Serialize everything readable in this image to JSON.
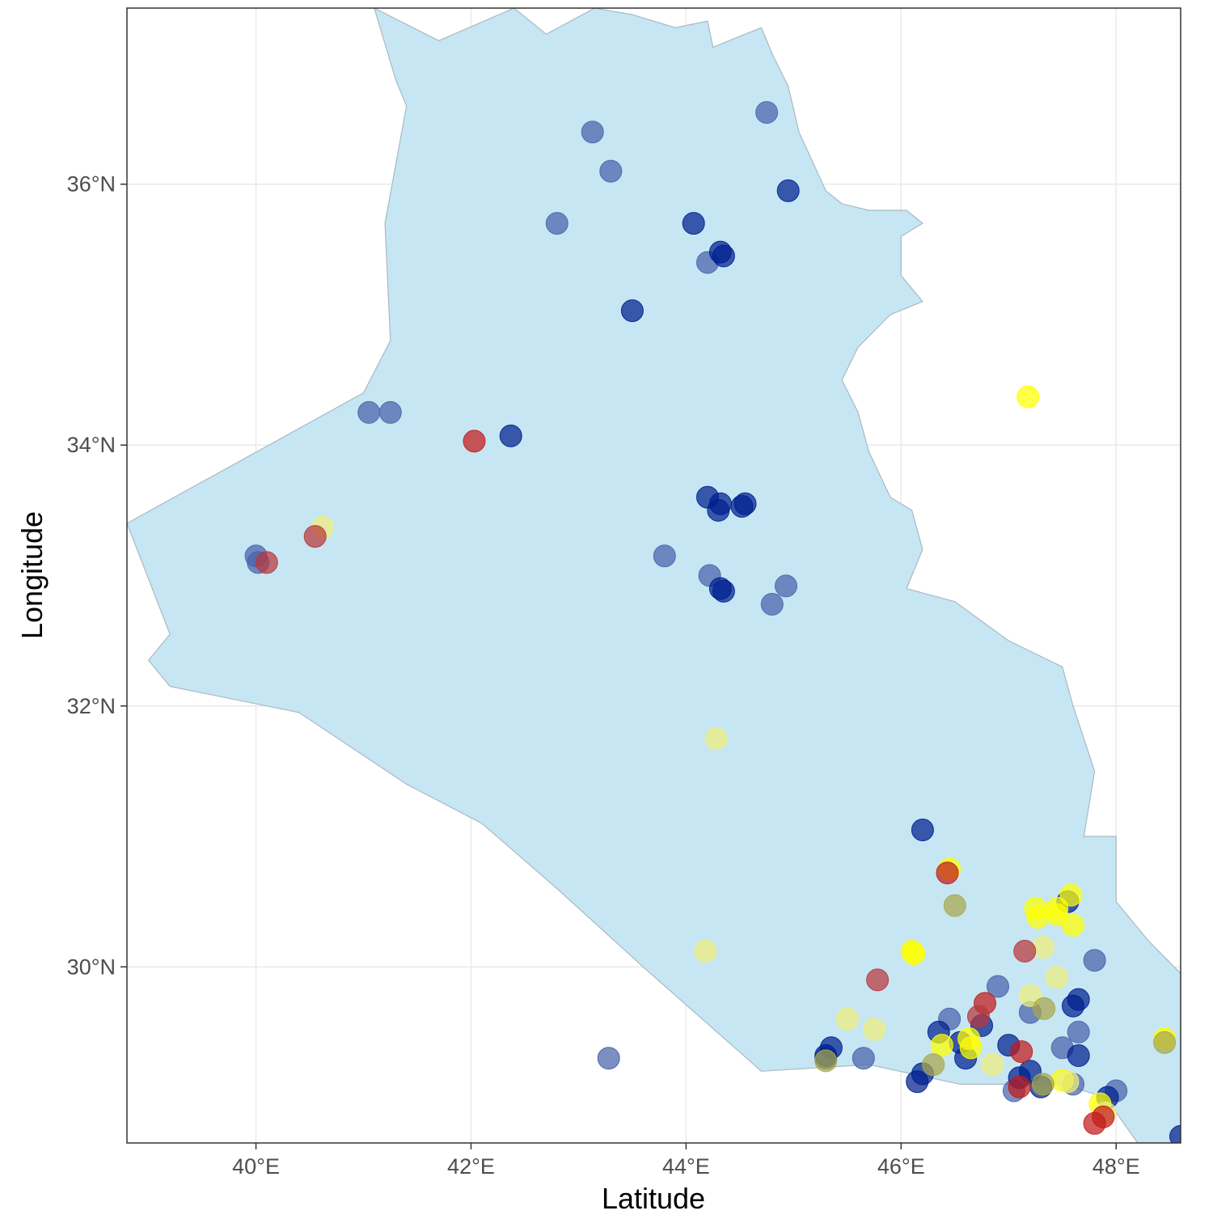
{
  "chart_data": {
    "type": "scatter",
    "title": "",
    "xlabel": "Latitude",
    "ylabel": "Longitude",
    "xlim": [
      38.8,
      48.6
    ],
    "ylim": [
      28.65,
      37.35
    ],
    "x_ticks": [
      {
        "value": 40,
        "label": "40°E"
      },
      {
        "value": 42,
        "label": "42°E"
      },
      {
        "value": 44,
        "label": "44°E"
      },
      {
        "value": 46,
        "label": "46°E"
      },
      {
        "value": 48,
        "label": "48°E"
      }
    ],
    "y_ticks": [
      {
        "value": 30,
        "label": "30°N"
      },
      {
        "value": 32,
        "label": "32°N"
      },
      {
        "value": 34,
        "label": "34°N"
      },
      {
        "value": 36,
        "label": "36°N"
      }
    ],
    "grid": true,
    "legend": "none",
    "colors": {
      "land_fill": "#c6e6f3",
      "land_border": "#a9b9c4",
      "gridline": "#ebebeb",
      "panel_border": "#333333",
      "navy": "#00208f",
      "navy_light": "#4a63aa",
      "yellow": "#ffff00",
      "yellow_pale": "#efef7a",
      "olive": "#a8a84a",
      "red": "#c21a1a",
      "red_muted": "#b8383a"
    },
    "country_outline": [
      [
        41.1,
        37.35
      ],
      [
        41.7,
        37.1
      ],
      [
        42.4,
        37.35
      ],
      [
        42.7,
        37.15
      ],
      [
        43.15,
        37.35
      ],
      [
        43.5,
        37.3
      ],
      [
        43.9,
        37.2
      ],
      [
        44.2,
        37.25
      ],
      [
        44.25,
        37.05
      ],
      [
        44.7,
        37.2
      ],
      [
        44.8,
        37.0
      ],
      [
        44.95,
        36.75
      ],
      [
        45.05,
        36.4
      ],
      [
        45.3,
        35.95
      ],
      [
        45.45,
        35.85
      ],
      [
        45.7,
        35.8
      ],
      [
        46.05,
        35.8
      ],
      [
        46.2,
        35.7
      ],
      [
        46.0,
        35.6
      ],
      [
        46.0,
        35.3
      ],
      [
        46.2,
        35.1
      ],
      [
        45.9,
        35.0
      ],
      [
        45.6,
        34.75
      ],
      [
        45.45,
        34.5
      ],
      [
        45.6,
        34.25
      ],
      [
        45.7,
        33.95
      ],
      [
        45.9,
        33.6
      ],
      [
        46.1,
        33.5
      ],
      [
        46.2,
        33.2
      ],
      [
        46.05,
        32.9
      ],
      [
        46.5,
        32.8
      ],
      [
        47.0,
        32.5
      ],
      [
        47.5,
        32.3
      ],
      [
        47.6,
        32.0
      ],
      [
        47.8,
        31.5
      ],
      [
        47.7,
        31.0
      ],
      [
        48.0,
        31.0
      ],
      [
        48.0,
        30.5
      ],
      [
        48.3,
        30.2
      ],
      [
        48.6,
        29.95
      ],
      [
        48.6,
        28.65
      ],
      [
        48.2,
        28.65
      ],
      [
        47.9,
        29.0
      ],
      [
        47.5,
        29.1
      ],
      [
        47.0,
        29.1
      ],
      [
        46.55,
        29.1
      ],
      [
        45.7,
        29.25
      ],
      [
        44.7,
        29.2
      ],
      [
        43.6,
        30.0
      ],
      [
        42.8,
        30.6
      ],
      [
        42.1,
        31.1
      ],
      [
        41.4,
        31.4
      ],
      [
        40.4,
        31.95
      ],
      [
        39.2,
        32.15
      ],
      [
        39.0,
        32.35
      ],
      [
        39.2,
        32.55
      ],
      [
        38.8,
        33.4
      ],
      [
        41.0,
        34.4
      ],
      [
        41.25,
        34.8
      ],
      [
        41.2,
        35.7
      ],
      [
        41.4,
        36.6
      ],
      [
        41.3,
        36.8
      ],
      [
        41.1,
        37.35
      ]
    ],
    "series": [
      {
        "color_key": "navy_light",
        "points": [
          [
            43.13,
            36.4
          ],
          [
            43.3,
            36.1
          ],
          [
            42.8,
            35.7
          ],
          [
            44.2,
            35.4
          ],
          [
            44.75,
            36.55
          ],
          [
            41.05,
            34.25
          ],
          [
            41.25,
            34.25
          ],
          [
            43.8,
            33.15
          ],
          [
            44.22,
            33.0
          ],
          [
            44.8,
            32.78
          ],
          [
            44.93,
            32.92
          ],
          [
            40.0,
            33.15
          ],
          [
            40.02,
            33.1
          ],
          [
            43.28,
            29.3
          ],
          [
            45.3,
            29.3
          ],
          [
            45.65,
            29.3
          ],
          [
            46.45,
            29.6
          ],
          [
            47.8,
            30.05
          ],
          [
            47.65,
            29.5
          ],
          [
            47.5,
            29.38
          ],
          [
            47.05,
            29.05
          ],
          [
            47.2,
            29.65
          ],
          [
            46.9,
            29.85
          ],
          [
            48.0,
            29.05
          ],
          [
            47.6,
            29.1
          ]
        ]
      },
      {
        "color_key": "navy",
        "points": [
          [
            44.95,
            35.95
          ],
          [
            44.07,
            35.7
          ],
          [
            44.35,
            35.45
          ],
          [
            44.32,
            35.48
          ],
          [
            43.5,
            35.03
          ],
          [
            42.37,
            34.07
          ],
          [
            44.2,
            33.6
          ],
          [
            44.3,
            33.5
          ],
          [
            44.32,
            33.55
          ],
          [
            44.52,
            33.53
          ],
          [
            44.55,
            33.55
          ],
          [
            44.32,
            32.9
          ],
          [
            44.35,
            32.88
          ],
          [
            46.2,
            31.05
          ],
          [
            45.35,
            29.38
          ],
          [
            45.3,
            29.32
          ],
          [
            46.2,
            29.18
          ],
          [
            46.15,
            29.12
          ],
          [
            46.35,
            29.5
          ],
          [
            46.6,
            29.3
          ],
          [
            46.75,
            29.55
          ],
          [
            47.0,
            29.4
          ],
          [
            47.2,
            29.2
          ],
          [
            47.3,
            29.08
          ],
          [
            47.65,
            29.75
          ],
          [
            47.6,
            29.7
          ],
          [
            47.65,
            29.32
          ],
          [
            47.92,
            29.0
          ],
          [
            48.6,
            28.7
          ],
          [
            47.1,
            29.15
          ],
          [
            47.55,
            30.5
          ],
          [
            46.55,
            29.42
          ]
        ]
      },
      {
        "color_key": "yellow",
        "points": [
          [
            47.18,
            34.37
          ],
          [
            46.45,
            30.75
          ],
          [
            46.1,
            30.12
          ],
          [
            46.12,
            30.1
          ],
          [
            47.25,
            30.45
          ],
          [
            47.27,
            30.38
          ],
          [
            47.45,
            30.45
          ],
          [
            47.6,
            30.32
          ],
          [
            47.58,
            30.55
          ],
          [
            46.38,
            29.4
          ],
          [
            46.63,
            29.45
          ],
          [
            46.65,
            29.38
          ],
          [
            47.5,
            29.13
          ],
          [
            47.85,
            28.95
          ],
          [
            48.45,
            29.45
          ],
          [
            47.45,
            30.4
          ]
        ]
      },
      {
        "color_key": "yellow_pale",
        "points": [
          [
            40.62,
            33.37
          ],
          [
            44.28,
            31.75
          ],
          [
            44.18,
            30.12
          ],
          [
            45.5,
            29.6
          ],
          [
            45.75,
            29.52
          ],
          [
            47.2,
            29.78
          ],
          [
            47.45,
            29.92
          ],
          [
            47.32,
            30.15
          ],
          [
            46.85,
            29.25
          ],
          [
            47.55,
            29.12
          ],
          [
            47.9,
            28.88
          ]
        ]
      },
      {
        "color_key": "olive",
        "points": [
          [
            46.5,
            30.47
          ],
          [
            45.3,
            29.28
          ],
          [
            46.3,
            29.25
          ],
          [
            47.32,
            29.1
          ],
          [
            47.33,
            29.68
          ],
          [
            48.45,
            29.42
          ]
        ]
      },
      {
        "color_key": "red",
        "points": [
          [
            42.03,
            34.03
          ],
          [
            46.43,
            30.72
          ],
          [
            47.12,
            29.35
          ],
          [
            46.78,
            29.72
          ],
          [
            47.1,
            29.08
          ],
          [
            47.88,
            28.85
          ],
          [
            47.8,
            28.8
          ]
        ]
      },
      {
        "color_key": "red_muted",
        "points": [
          [
            40.1,
            33.1
          ],
          [
            40.55,
            33.3
          ],
          [
            45.78,
            29.9
          ],
          [
            47.15,
            30.12
          ],
          [
            46.72,
            29.62
          ]
        ]
      }
    ]
  }
}
